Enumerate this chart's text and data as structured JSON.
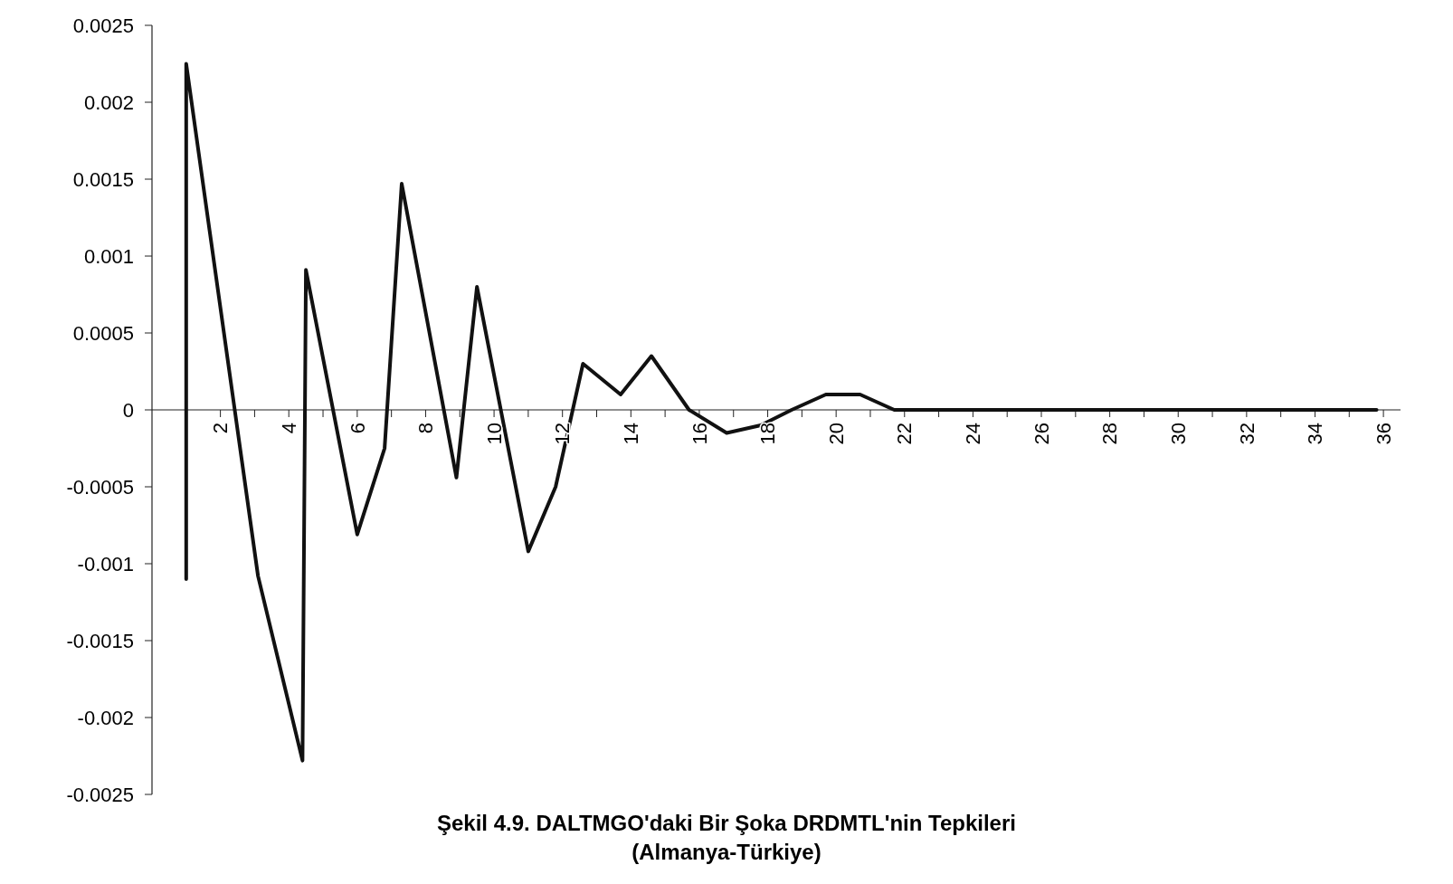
{
  "chart_data": {
    "type": "line",
    "title": "Şekil 4.9. DALTMGO'daki Bir Şoka DRDMTL'nin Tepkileri",
    "subtitle": "(Almanya-Türkiye)",
    "x": [
      1,
      1,
      3.1,
      4.4,
      4.5,
      6.0,
      6.8,
      7.3,
      8.9,
      9.5,
      11.0,
      11.8,
      12.6,
      13.7,
      14.6,
      15.7,
      16.8,
      17.8,
      18.7,
      19.7,
      20.7,
      21.7,
      22.6,
      24.7,
      25.7,
      28.1,
      30.7,
      35.8
    ],
    "series": [
      {
        "color": "#111111",
        "values": [
          -0.0011,
          0.00225,
          -0.00108,
          -0.00228,
          0.00091,
          -0.00081,
          -0.00025,
          0.00147,
          -0.00044,
          0.0008,
          -0.00092,
          -0.0005,
          0.0003,
          0.0001,
          0.00035,
          0,
          -0.00015,
          -0.0001,
          0,
          0.0001,
          0.0001,
          0,
          0,
          0,
          0,
          0,
          0,
          0
        ]
      }
    ],
    "xlim": [
      0,
      36.5
    ],
    "xticks": [
      {
        "value": 1,
        "label": null
      },
      2,
      {
        "value": 3,
        "label": null
      },
      4,
      {
        "value": 5,
        "label": null
      },
      6,
      {
        "value": 7,
        "label": null
      },
      8,
      {
        "value": 9,
        "label": null
      },
      10,
      {
        "value": 11,
        "label": null
      },
      12,
      {
        "value": 13,
        "label": null
      },
      14,
      {
        "value": 15,
        "label": null
      },
      16,
      {
        "value": 17,
        "label": null
      },
      18,
      {
        "value": 19,
        "label": null
      },
      20,
      {
        "value": 21,
        "label": null
      },
      22,
      {
        "value": 23,
        "label": null
      },
      24,
      {
        "value": 25,
        "label": null
      },
      26,
      {
        "value": 27,
        "label": null
      },
      28,
      {
        "value": 29,
        "label": null
      },
      30,
      {
        "value": 31,
        "label": null
      },
      32,
      {
        "value": 33,
        "label": null
      },
      34,
      {
        "value": 35,
        "label": null
      },
      36
    ],
    "ylim": [
      -0.0025,
      0.0025
    ],
    "yticks": [
      -0.0025,
      -0.002,
      -0.0015,
      -0.001,
      -0.0005,
      0,
      0.0005,
      0.001,
      0.0015,
      0.002,
      0.0025
    ],
    "grid": false,
    "marker": "none",
    "line_style": "solid"
  }
}
